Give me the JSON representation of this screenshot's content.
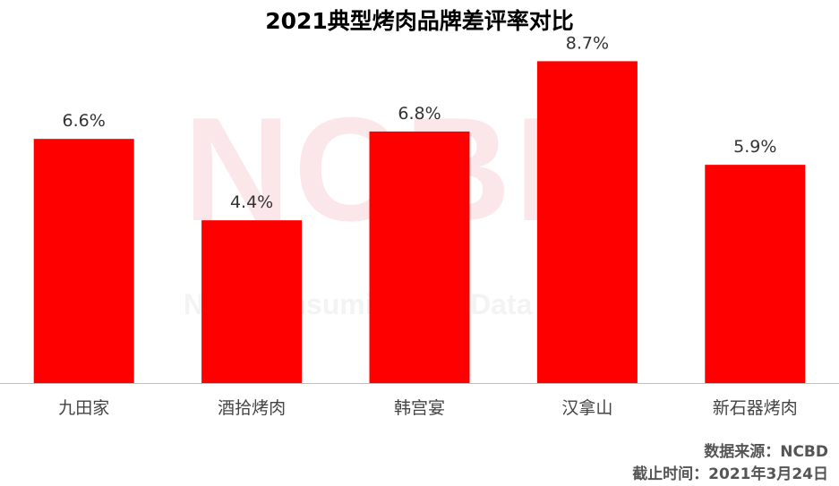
{
  "watermark": {
    "logo": "NCBD",
    "subtitle": "New Consuming Big Data"
  },
  "source": {
    "line1": "数据来源：NCBD",
    "line2": "截止时间：2021年3月24日"
  },
  "colors": {
    "bar": "#ff0000",
    "axis": "#bfbfbf"
  },
  "chart_data": {
    "type": "bar",
    "title": "2021典型烤肉品牌差评率对比",
    "categories": [
      "九田家",
      "酒拾烤肉",
      "韩宫宴",
      "汉拿山",
      "新石器烤肉"
    ],
    "values": [
      6.6,
      4.4,
      6.8,
      8.7,
      5.9
    ],
    "data_labels": [
      "6.6%",
      "4.4%",
      "6.8%",
      "8.7%",
      "5.9%"
    ],
    "ylim": [
      0,
      9.0
    ],
    "grid": false,
    "legend": "none"
  }
}
